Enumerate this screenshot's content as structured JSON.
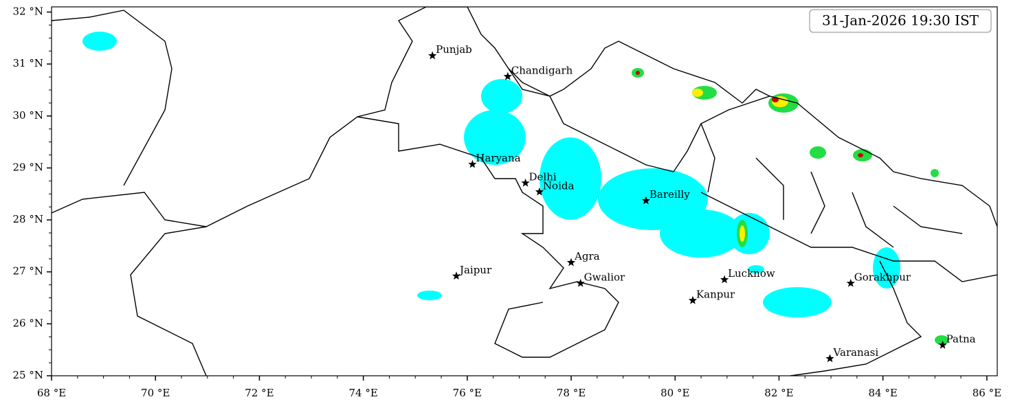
{
  "map": {
    "title": "31-Jan-2026 19:30 IST",
    "xlim": [
      68,
      86.2
    ],
    "ylim": [
      25,
      32.1
    ],
    "xticks": [
      {
        "value": 68,
        "label": "68 °E"
      },
      {
        "value": 70,
        "label": "70 °E"
      },
      {
        "value": 72,
        "label": "72 °E"
      },
      {
        "value": 74,
        "label": "74 °E"
      },
      {
        "value": 76,
        "label": "76 °E"
      },
      {
        "value": 78,
        "label": "78 °E"
      },
      {
        "value": 80,
        "label": "80 °E"
      },
      {
        "value": 82,
        "label": "82 °E"
      },
      {
        "value": 84,
        "label": "84 °E"
      },
      {
        "value": 86,
        "label": "86 °E"
      }
    ],
    "yticks": [
      {
        "value": 25,
        "label": "25 °N"
      },
      {
        "value": 26,
        "label": "26 °N"
      },
      {
        "value": 27,
        "label": "27 °N"
      },
      {
        "value": 28,
        "label": "28 °N"
      },
      {
        "value": 29,
        "label": "29 °N"
      },
      {
        "value": 30,
        "label": "30 °N"
      },
      {
        "value": 31,
        "label": "31 °N"
      },
      {
        "value": 32,
        "label": "32 °N"
      }
    ],
    "cities": [
      {
        "name": "Punjab",
        "lon": 75.33,
        "lat": 31.16
      },
      {
        "name": "Chandigarh",
        "lon": 76.78,
        "lat": 30.76
      },
      {
        "name": "Haryana",
        "lon": 76.1,
        "lat": 29.07
      },
      {
        "name": "Delhi",
        "lon": 77.12,
        "lat": 28.71
      },
      {
        "name": "Noida",
        "lon": 77.39,
        "lat": 28.54
      },
      {
        "name": "Bareilly",
        "lon": 79.44,
        "lat": 28.37
      },
      {
        "name": "Agra",
        "lon": 78.0,
        "lat": 27.18
      },
      {
        "name": "Jaipur",
        "lon": 75.79,
        "lat": 26.92
      },
      {
        "name": "Gwalior",
        "lon": 78.18,
        "lat": 26.78
      },
      {
        "name": "Lucknow",
        "lon": 80.95,
        "lat": 26.85
      },
      {
        "name": "Kanpur",
        "lon": 80.34,
        "lat": 26.45
      },
      {
        "name": "Gorakhpur",
        "lon": 83.38,
        "lat": 26.78
      },
      {
        "name": "Varanasi",
        "lon": 82.98,
        "lat": 25.33
      },
      {
        "name": "Patna",
        "lon": 85.15,
        "lat": 25.59
      }
    ]
  }
}
